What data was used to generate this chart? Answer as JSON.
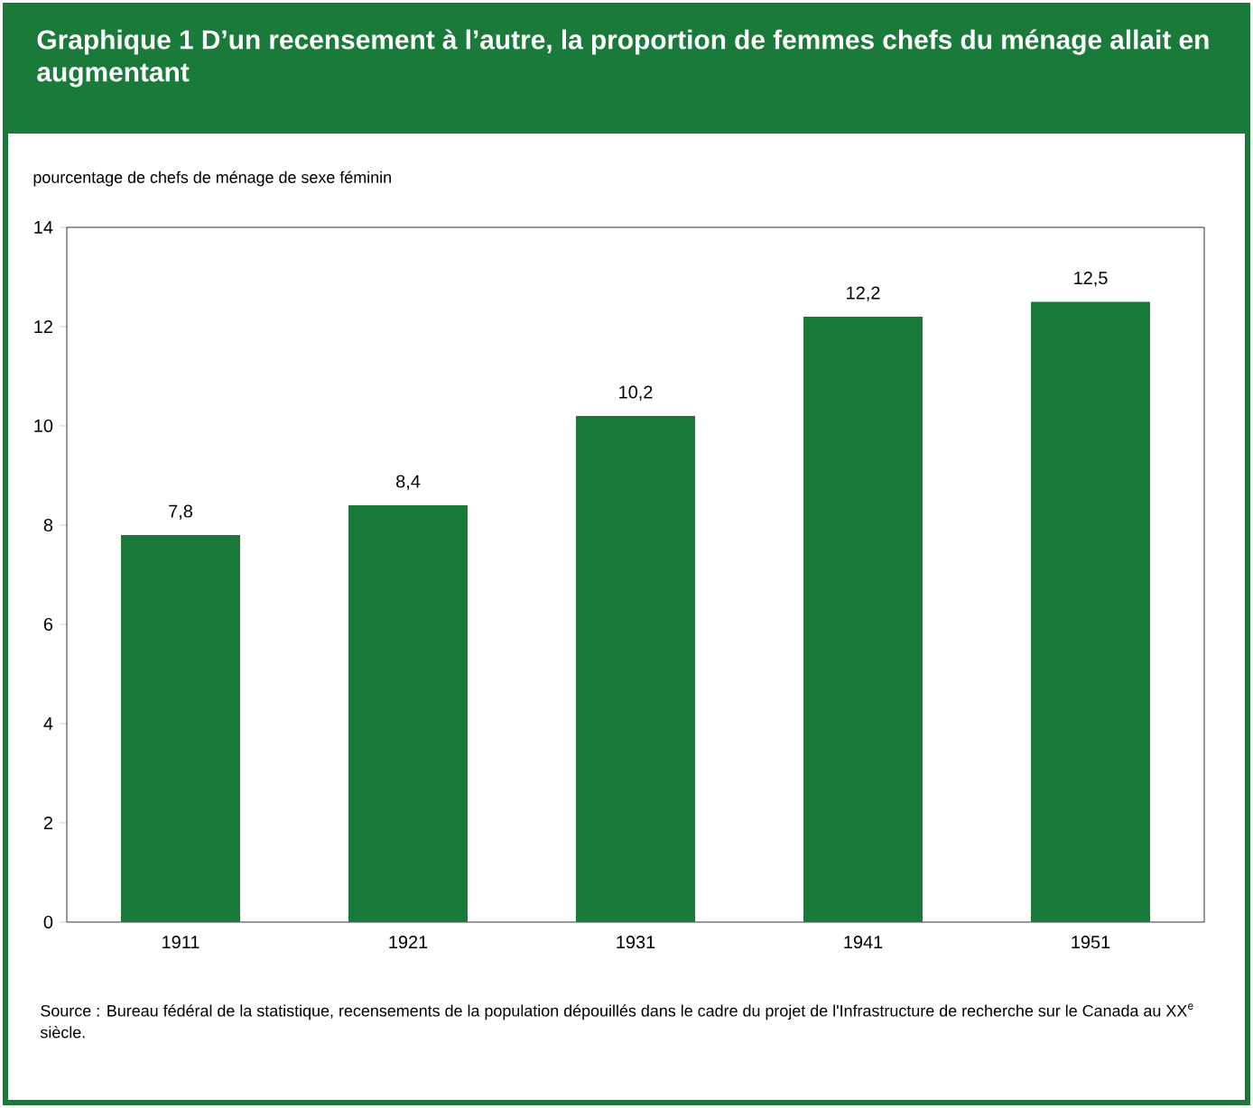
{
  "chart_data": {
    "type": "bar",
    "title": "Graphique 1   D’un recensement à l’autre, la proportion de femmes chefs du ménage allait en augmentant",
    "ylabel": "pourcentage de chefs de ménage de sexe féminin",
    "categories": [
      "1911",
      "1921",
      "1931",
      "1941",
      "1951"
    ],
    "values": [
      7.8,
      8.4,
      10.2,
      12.2,
      12.5
    ],
    "value_labels": [
      "7,8",
      "8,4",
      "10,2",
      "12,2",
      "12,5"
    ],
    "color": "#1a7a3a",
    "ylim": [
      0,
      14
    ],
    "yticks": [
      0,
      2,
      4,
      6,
      8,
      10,
      12,
      14
    ],
    "annotations": [
      "Source : Bureau fédéral de la statistique, recensements de la population dépouillés dans le cadre du projet de l'Infrastructure de recherche sur le Canada au XX$^{e}$ siècle."
    ]
  }
}
